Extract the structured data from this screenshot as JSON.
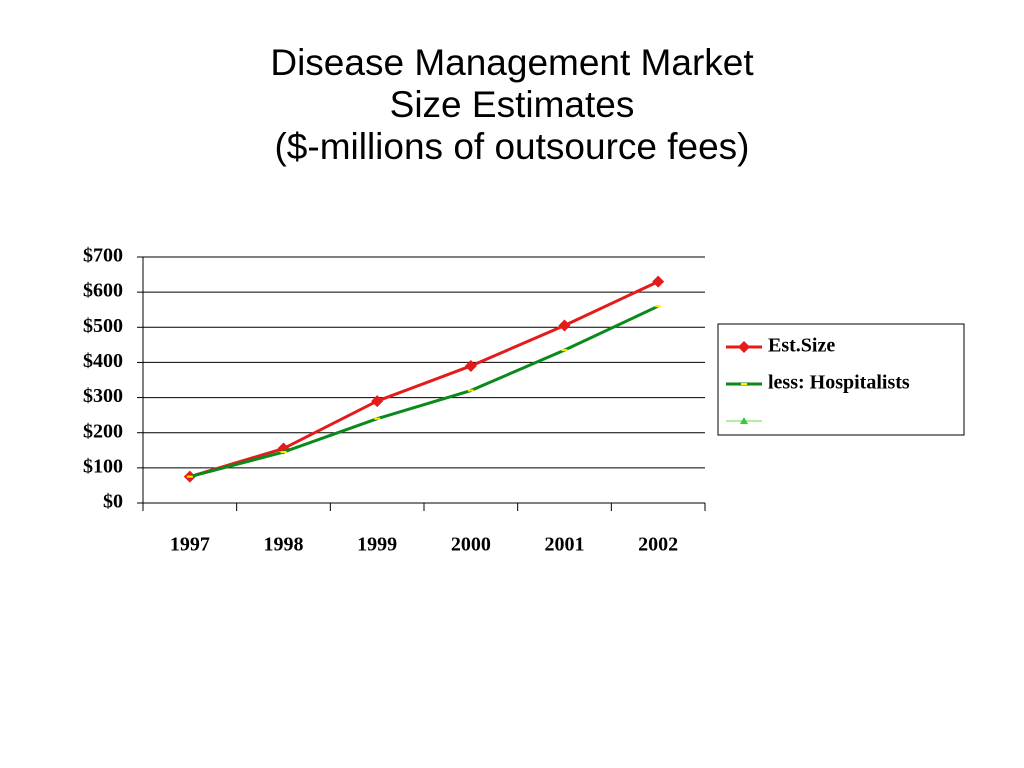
{
  "chart_data": {
    "type": "line",
    "title": "Disease Management Market Size Estimates",
    "subtitle": "($-millions of outsource fees)",
    "categories": [
      "1997",
      "1998",
      "1999",
      "2000",
      "2001",
      "2002"
    ],
    "series": [
      {
        "name": "Est.Size",
        "color": "#e31b1b",
        "marker": "diamond",
        "values": [
          75,
          155,
          290,
          390,
          505,
          630
        ]
      },
      {
        "name": "less: Hospitalists",
        "color": "#0a8a1a",
        "marker": "dash",
        "values": [
          75,
          145,
          240,
          320,
          435,
          560
        ]
      }
    ],
    "ylim": [
      0,
      700
    ],
    "yticks": [
      {
        "value": 0,
        "label": "$0"
      },
      {
        "value": 100,
        "label": "$100"
      },
      {
        "value": 200,
        "label": "$200"
      },
      {
        "value": 300,
        "label": "$300"
      },
      {
        "value": 400,
        "label": "$400"
      },
      {
        "value": 500,
        "label": "$500"
      },
      {
        "value": 600,
        "label": "$600"
      },
      {
        "value": 700,
        "label": "$700"
      }
    ],
    "grid": true,
    "legend": "right"
  }
}
